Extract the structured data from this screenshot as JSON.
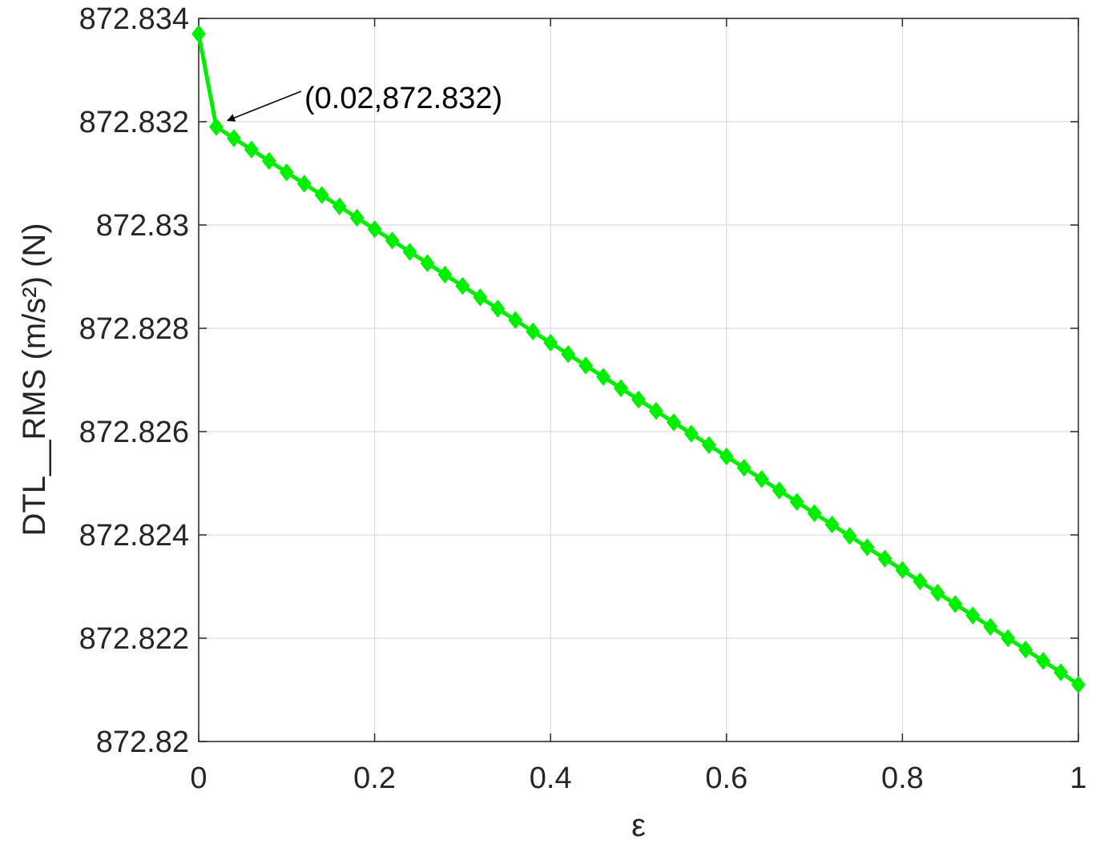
{
  "chart_data": {
    "type": "line",
    "title": "",
    "xlabel": "ε",
    "ylabel": "DTL__RMS (m/s²) (N)",
    "xlim": [
      0,
      1
    ],
    "ylim": [
      872.82,
      872.834
    ],
    "grid": true,
    "x_ticks": [
      "0",
      "0.2",
      "0.4",
      "0.6",
      "0.8",
      "1"
    ],
    "y_ticks": [
      "872.82",
      "872.822",
      "872.824",
      "872.826",
      "872.828",
      "872.83",
      "872.832",
      "872.834"
    ],
    "series": [
      {
        "color": "#00ee00",
        "marker": "diamond",
        "x": [
          0,
          0.02,
          0.04,
          0.06,
          0.08,
          0.1,
          0.12,
          0.14,
          0.16,
          0.18,
          0.2,
          0.22,
          0.24,
          0.26,
          0.28,
          0.3,
          0.32,
          0.34,
          0.36,
          0.38,
          0.4,
          0.42,
          0.44,
          0.46,
          0.48,
          0.5,
          0.52,
          0.54,
          0.56,
          0.58,
          0.6,
          0.62,
          0.64,
          0.66,
          0.68,
          0.7,
          0.72,
          0.74,
          0.76,
          0.78,
          0.8,
          0.82,
          0.84,
          0.86,
          0.88,
          0.9,
          0.92,
          0.94,
          0.96,
          0.98,
          1
        ],
        "y": [
          872.8337,
          872.8319,
          872.83168,
          872.83146,
          872.83124,
          872.83102,
          872.8308,
          872.83058,
          872.83036,
          872.83014,
          872.82992,
          872.8297,
          872.82948,
          872.82926,
          872.82904,
          872.82882,
          872.8286,
          872.82838,
          872.82816,
          872.82794,
          872.82772,
          872.8275,
          872.82728,
          872.82706,
          872.82684,
          872.82662,
          872.8264,
          872.82618,
          872.82596,
          872.82574,
          872.82552,
          872.8253,
          872.82508,
          872.82486,
          872.82464,
          872.82442,
          872.8242,
          872.82398,
          872.82376,
          872.82354,
          872.82332,
          872.8231,
          872.82288,
          872.82266,
          872.82244,
          872.82222,
          872.822,
          872.82178,
          872.82156,
          872.82134,
          872.8211
        ]
      }
    ],
    "annotations": [
      {
        "text": "(0.02,872.832)",
        "target_x": 0.02,
        "target_y": 872.8319
      }
    ]
  }
}
